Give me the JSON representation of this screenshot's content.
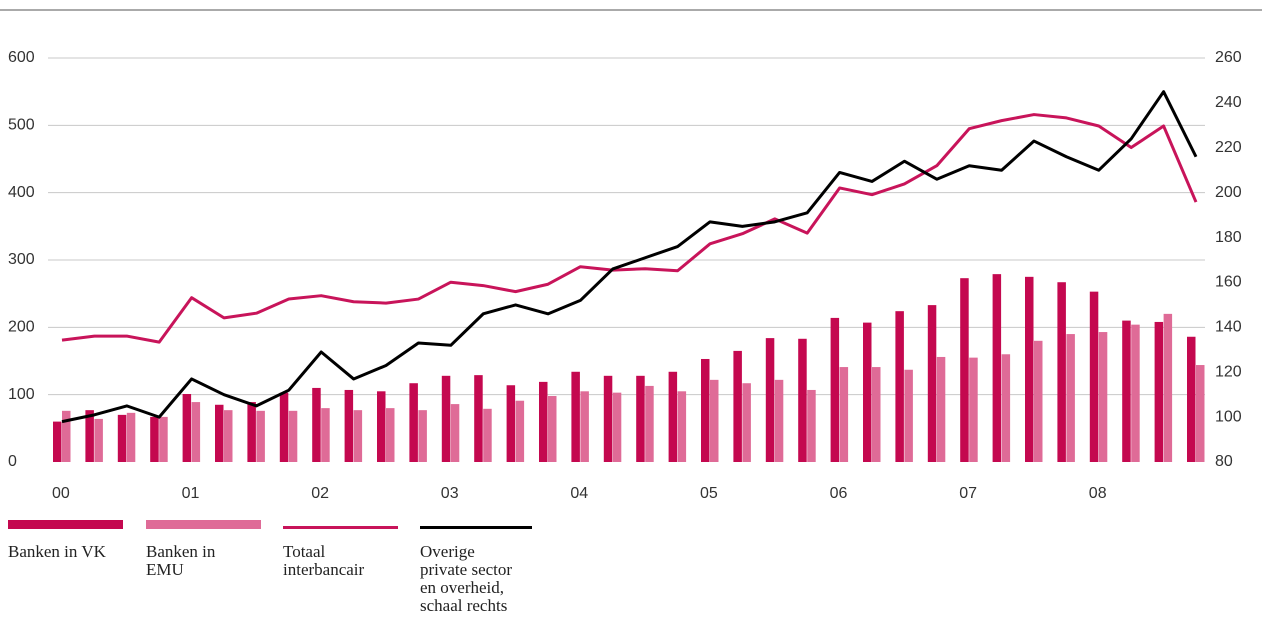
{
  "chart_data": {
    "type": "bar-line",
    "categories": [
      "00",
      null,
      null,
      null,
      "01",
      null,
      null,
      null,
      "02",
      null,
      null,
      null,
      "03",
      null,
      null,
      null,
      "04",
      null,
      null,
      null,
      "05",
      null,
      null,
      null,
      "06",
      null,
      null,
      null,
      "07",
      null,
      null,
      null,
      "08",
      null,
      null,
      null
    ],
    "ylim": [
      0,
      600
    ],
    "yticks": [
      0,
      100,
      200,
      300,
      400,
      500,
      600
    ],
    "y2lim": [
      80,
      260
    ],
    "y2ticks": [
      80,
      100,
      120,
      140,
      160,
      180,
      200,
      220,
      240,
      260
    ],
    "grid": true,
    "series": [
      {
        "name": "Banken in VK",
        "type": "bar",
        "color": "#c4084f",
        "values": [
          60,
          77,
          70,
          67,
          101,
          85,
          89,
          103,
          110,
          107,
          105,
          117,
          128,
          129,
          114,
          119,
          134,
          128,
          128,
          134,
          153,
          165,
          184,
          183,
          214,
          207,
          224,
          233,
          273,
          279,
          275,
          267,
          253,
          210,
          208,
          186
        ]
      },
      {
        "name": "Banken in EMU",
        "type": "bar",
        "color": "#df6b97",
        "values": [
          76,
          64,
          73,
          67,
          89,
          77,
          76,
          76,
          80,
          77,
          80,
          77,
          86,
          79,
          91,
          98,
          105,
          103,
          113,
          105,
          122,
          117,
          122,
          107,
          141,
          141,
          137,
          156,
          155,
          160,
          180,
          190,
          193,
          204,
          220,
          144
        ]
      },
      {
        "name": "Totaal interbancair",
        "type": "line",
        "color": "#c8145a",
        "values": [
          181,
          187,
          187,
          178,
          244,
          214,
          221,
          242,
          247,
          238,
          236,
          242,
          267,
          262,
          253,
          264,
          290,
          285,
          287,
          284,
          324,
          339,
          361,
          340,
          407,
          397,
          413,
          440,
          495,
          507,
          516,
          511,
          499,
          467,
          499,
          386
        ]
      },
      {
        "name": "Overige private sector en overheid, schaal rechts",
        "type": "line",
        "color": "#000000",
        "axis": "y2",
        "values": [
          98,
          101,
          105,
          100,
          117,
          110,
          105,
          112,
          129,
          117,
          123,
          133,
          132,
          146,
          150,
          146,
          152,
          166,
          171,
          176,
          187,
          185,
          187,
          191,
          209,
          205,
          214,
          206,
          212,
          210,
          223,
          216,
          210,
          224,
          245,
          216
        ]
      }
    ]
  }
}
